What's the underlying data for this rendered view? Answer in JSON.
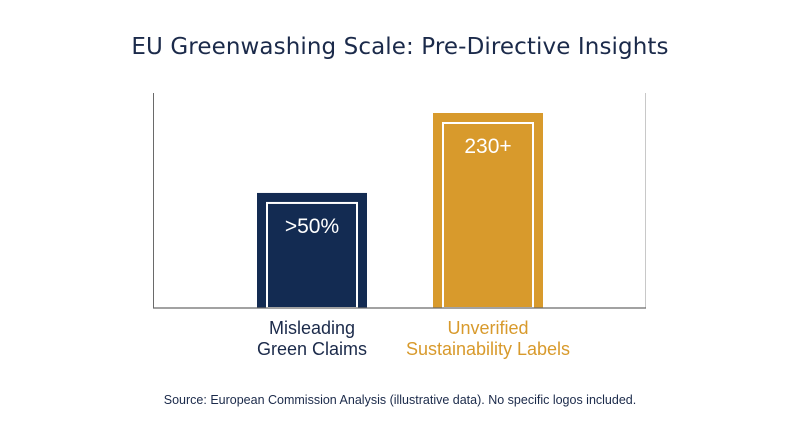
{
  "page": {
    "title": "EU Greenwashing Scale: Pre-Directive Insights",
    "source": "Source: European Commission Analysis (illustrative data). No specific logos included."
  },
  "chart_data": {
    "type": "bar",
    "categories": [
      {
        "lines": [
          "Misleading",
          "Green Claims"
        ],
        "color": "#1b2a4a"
      },
      {
        "lines": [
          "Unverified",
          "Sustainability Labels"
        ],
        "color": "#d89a2c"
      }
    ],
    "values": [
      50,
      230
    ],
    "relative_heights": [
      0.59,
      1.0
    ],
    "data_labels": [
      ">50%",
      "230+"
    ],
    "bar_colors": [
      "#132b52",
      "#d89a2c"
    ],
    "axes": {
      "x_axis": true,
      "y_axis": true,
      "right_border": true,
      "grid": false,
      "tick_labels": false
    },
    "legend": "none"
  }
}
